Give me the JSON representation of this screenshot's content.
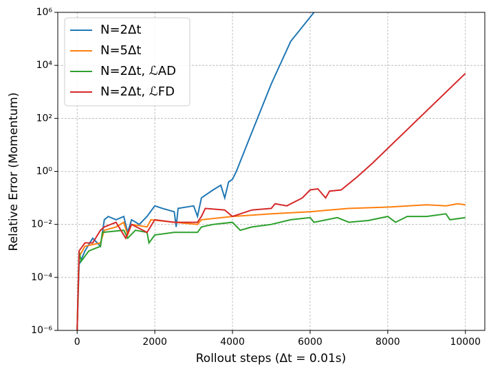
{
  "chart_data": {
    "type": "line",
    "x_label": "Rollout steps (Δt = 0.01s)",
    "y_label": "Relative Error (Momentum)",
    "xlim": [
      -500,
      10500
    ],
    "xticks": [
      0,
      2000,
      4000,
      6000,
      8000,
      10000
    ],
    "ylim": [
      1e-06,
      1000000.0
    ],
    "log_y": true,
    "yticks": [
      {
        "value": 1e-06,
        "label": "10⁻⁶"
      },
      {
        "value": 0.0001,
        "label": "10⁻⁴"
      },
      {
        "value": 0.01,
        "label": "10⁻²"
      },
      {
        "value": 1,
        "label": "10⁰"
      },
      {
        "value": 100,
        "label": "10²"
      },
      {
        "value": 10000,
        "label": "10⁴"
      },
      {
        "value": 1000000,
        "label": "10⁶"
      }
    ],
    "grid": true,
    "legend": "upper left",
    "series": [
      {
        "name": "N=2Δt",
        "color": "#1f77b4",
        "x": [
          0,
          50,
          200,
          400,
          600,
          700,
          800,
          1000,
          1200,
          1300,
          1400,
          1600,
          1800,
          2000,
          2200,
          2500,
          2550,
          2600,
          3000,
          3100,
          3200,
          3500,
          3700,
          3800,
          3900,
          4000,
          4100,
          4500,
          5000,
          5500,
          6100
        ],
        "values": [
          1e-06,
          0.0003,
          0.001,
          0.003,
          0.0015,
          0.015,
          0.02,
          0.015,
          0.02,
          0.005,
          0.015,
          0.01,
          0.02,
          0.05,
          0.04,
          0.03,
          0.008,
          0.04,
          0.05,
          0.02,
          0.1,
          0.2,
          0.3,
          0.1,
          0.4,
          0.5,
          1,
          30,
          2000,
          80000,
          1000000
        ]
      },
      {
        "name": "N=5Δt",
        "color": "#ff7f0e",
        "x": [
          0,
          50,
          200,
          600,
          700,
          1000,
          1200,
          1300,
          1400,
          1800,
          1900,
          2500,
          3100,
          3200,
          4000,
          5000,
          6000,
          6500,
          7000,
          8000,
          9000,
          9500,
          9800,
          10000
        ],
        "values": [
          1e-06,
          0.0006,
          0.0015,
          0.002,
          0.006,
          0.008,
          0.012,
          0.004,
          0.01,
          0.008,
          0.015,
          0.012,
          0.01,
          0.015,
          0.02,
          0.025,
          0.03,
          0.035,
          0.04,
          0.045,
          0.055,
          0.05,
          0.06,
          0.055
        ]
      },
      {
        "name": "N=2Δt, ℒAD",
        "color": "#2ca02c",
        "x": [
          0,
          50,
          100,
          300,
          600,
          650,
          1200,
          1300,
          1500,
          1800,
          1850,
          2000,
          2500,
          3100,
          3200,
          3500,
          4000,
          4200,
          4500,
          5000,
          5500,
          6000,
          6100,
          6700,
          7000,
          7500,
          8000,
          8200,
          8500,
          9000,
          9500,
          9600,
          10000
        ],
        "values": [
          1e-06,
          0.001,
          0.0004,
          0.001,
          0.0015,
          0.005,
          0.006,
          0.003,
          0.006,
          0.005,
          0.002,
          0.004,
          0.005,
          0.005,
          0.008,
          0.01,
          0.012,
          0.006,
          0.008,
          0.01,
          0.015,
          0.018,
          0.012,
          0.018,
          0.012,
          0.014,
          0.02,
          0.012,
          0.02,
          0.02,
          0.025,
          0.015,
          0.018
        ]
      },
      {
        "name": "N=2Δt, ℒFD",
        "color": "#d62728",
        "x": [
          0,
          50,
          200,
          400,
          600,
          700,
          1000,
          1250,
          1400,
          1800,
          2000,
          2500,
          3100,
          3200,
          3300,
          3800,
          4000,
          4500,
          5000,
          5100,
          5400,
          5800,
          6000,
          6200,
          6400,
          6500,
          6800,
          7200,
          7600,
          10000
        ],
        "values": [
          1e-06,
          0.001,
          0.002,
          0.002,
          0.006,
          0.008,
          0.012,
          0.003,
          0.01,
          0.005,
          0.015,
          0.012,
          0.012,
          0.02,
          0.04,
          0.035,
          0.02,
          0.035,
          0.04,
          0.06,
          0.05,
          0.1,
          0.2,
          0.22,
          0.1,
          0.18,
          0.2,
          0.6,
          2,
          5000
        ]
      }
    ]
  }
}
